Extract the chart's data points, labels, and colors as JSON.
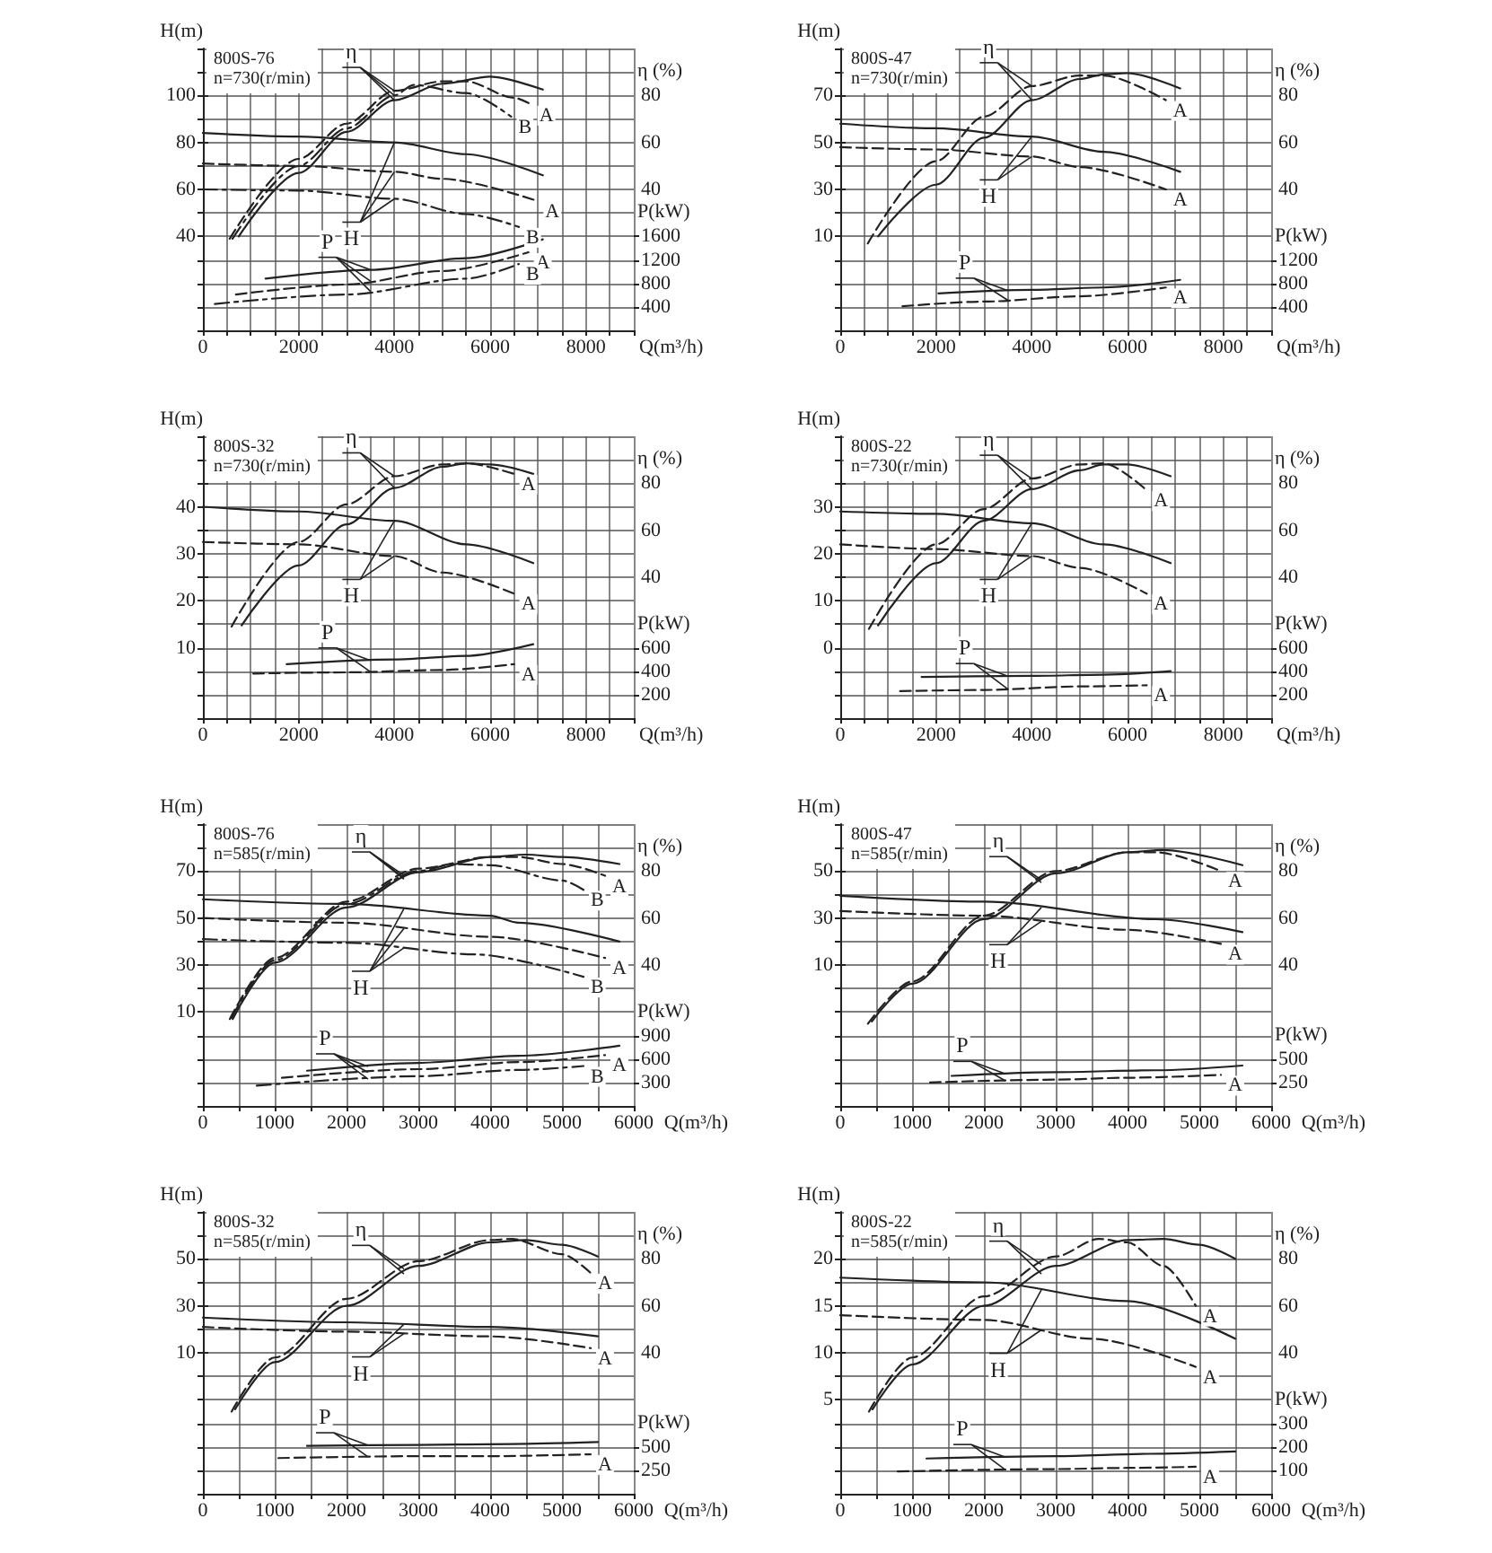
{
  "chart_data": [
    {
      "type": "line",
      "title": "800S-76",
      "subtitle": "n=730(r/min)",
      "xlabel": "Q(m³/h)",
      "ylabel": "H(m)",
      "y2label": "η (%)",
      "y3label": "P(kW)",
      "grid": true,
      "xlim": [
        0,
        9000
      ],
      "xticks": [
        0,
        {
          "value": 500,
          "label": null
        },
        {
          "value": 1000,
          "label": null
        },
        {
          "value": 1500,
          "label": null
        },
        2000,
        {
          "value": 2500,
          "label": null
        },
        {
          "value": 3000,
          "label": null
        },
        {
          "value": 3500,
          "label": null
        },
        4000,
        {
          "value": 4500,
          "label": null
        },
        {
          "value": 5000,
          "label": null
        },
        {
          "value": 5500,
          "label": null
        },
        6000,
        {
          "value": 6500,
          "label": null
        },
        {
          "value": 7000,
          "label": null
        },
        {
          "value": 7500,
          "label": null
        },
        8000,
        {
          "value": 8500,
          "label": null
        },
        {
          "value": 9000,
          "label": null
        }
      ],
      "ylim": [
        0,
        120
      ],
      "yticks": [
        {
          "value": 0,
          "label": null
        },
        {
          "value": 10,
          "label": null
        },
        {
          "value": 20,
          "label": null
        },
        {
          "value": 30,
          "label": null
        },
        40,
        {
          "value": 50,
          "label": null
        },
        60,
        {
          "value": 70,
          "label": null
        },
        80,
        {
          "value": 90,
          "label": null
        },
        100,
        {
          "value": 110,
          "label": null
        },
        {
          "value": 120,
          "label": null
        }
      ],
      "y2lim": [
        -20,
        100
      ],
      "y2ticks": [
        40,
        60,
        80
      ],
      "y3lim": [
        0,
        4800
      ],
      "y3ticks": [
        400,
        800,
        1200,
        1600
      ],
      "annotations": [
        {
          "text": "η",
          "x": 4000,
          "y": 98
        },
        {
          "text": "H",
          "x": 4000,
          "y": 80
        },
        {
          "text": "P",
          "x": 3500,
          "y": 25.8
        }
      ],
      "series": [
        {
          "axis": "y2",
          "color": "#222222",
          "line_style": "solid",
          "x": [
            750,
            2000,
            3000,
            4000,
            5000,
            6000,
            7100
          ],
          "values": [
            20,
            47,
            64.5,
            78,
            85,
            88,
            82.5
          ]
        },
        {
          "name": "A",
          "axis": "y2",
          "color": "#222222",
          "line_style": "dashed",
          "x": [
            560,
            2000,
            3000,
            4000,
            5000,
            5500,
            6500,
            6875
          ],
          "values": [
            19,
            53,
            68,
            82,
            86,
            86,
            79,
            76
          ]
        },
        {
          "name": "B",
          "axis": "y2",
          "color": "#222222",
          "line_style": "dashdot",
          "x": [
            620,
            2000,
            3000,
            4000,
            4400,
            5500,
            6440
          ],
          "values": [
            19,
            50,
            66,
            80,
            84.5,
            81,
            71
          ]
        },
        {
          "color": "#222222",
          "line_style": "solid",
          "x": [
            0,
            2000,
            4000,
            5500,
            7100
          ],
          "values": [
            84,
            82.5,
            80,
            75,
            66
          ]
        },
        {
          "name": "A",
          "color": "#222222",
          "line_style": "dashed",
          "x": [
            0,
            2000,
            4000,
            5000,
            7000
          ],
          "values": [
            71,
            70,
            67.5,
            64.5,
            55
          ]
        },
        {
          "name": "B",
          "color": "#222222",
          "line_style": "dashdot",
          "x": [
            0,
            2000,
            4000,
            5500,
            6600
          ],
          "values": [
            60,
            59.5,
            56,
            49.5,
            44
          ]
        },
        {
          "axis": "y3",
          "color": "#222222",
          "line_style": "solid",
          "x": [
            1310,
            3500,
            5500,
            7100
          ],
          "values": [
            880,
            1030,
            1230,
            1550
          ]
        },
        {
          "name": "A",
          "axis": "y3",
          "color": "#222222",
          "line_style": "dashed",
          "x": [
            690,
            3000,
            5000,
            6800
          ],
          "values": [
            610,
            780,
            1010,
            1330
          ]
        },
        {
          "name": "B",
          "axis": "y3",
          "color": "#222222",
          "line_style": "dashdot",
          "x": [
            250,
            3000,
            5500,
            6600
          ],
          "values": [
            450,
            610,
            880,
            1130
          ]
        }
      ]
    },
    {
      "type": "line",
      "title": "800S-47",
      "subtitle": "n=730(r/min)",
      "xlabel": "Q(m³/h)",
      "ylabel": "H(m)",
      "y2label": "η (%)",
      "y3label": "P(kW)",
      "grid": true,
      "xlim": [
        0,
        9000
      ],
      "xticks": [
        0,
        {
          "value": 500,
          "label": null
        },
        {
          "value": 1000,
          "label": null
        },
        {
          "value": 1500,
          "label": null
        },
        2000,
        {
          "value": 2500,
          "label": null
        },
        {
          "value": 3000,
          "label": null
        },
        {
          "value": 3500,
          "label": null
        },
        4000,
        {
          "value": 4500,
          "label": null
        },
        {
          "value": 5000,
          "label": null
        },
        {
          "value": 5500,
          "label": null
        },
        6000,
        {
          "value": 6500,
          "label": null
        },
        {
          "value": 7000,
          "label": null
        },
        {
          "value": 7500,
          "label": null
        },
        8000,
        {
          "value": 8500,
          "label": null
        },
        {
          "value": 9000,
          "label": null
        }
      ],
      "ylim": [
        -30,
        90
      ],
      "yticks": [
        {
          "value": -30,
          "label": null
        },
        {
          "value": -20,
          "label": null
        },
        {
          "value": -10,
          "label": null
        },
        {
          "value": 0,
          "label": null
        },
        10,
        {
          "value": 20,
          "label": null
        },
        30,
        {
          "value": 40,
          "label": null
        },
        50,
        {
          "value": 60,
          "label": null
        },
        70,
        {
          "value": 80,
          "label": null
        },
        {
          "value": 90,
          "label": null
        }
      ],
      "y2lim": [
        -20,
        100
      ],
      "y2ticks": [
        40,
        60,
        80
      ],
      "y3lim": [
        0,
        4800
      ],
      "y3ticks": [
        400,
        800,
        1200
      ],
      "annotations": [
        {
          "text": "η",
          "x": 4000,
          "y": 68
        },
        {
          "text": "H",
          "x": 4000,
          "y": 52.5
        },
        {
          "text": "P",
          "x": 3500,
          "y": -13.3
        }
      ],
      "series": [
        {
          "axis": "y2",
          "color": "#222222",
          "line_style": "solid",
          "x": [
            790,
            2000,
            3000,
            4000,
            5000,
            5500,
            6000,
            7100
          ],
          "values": [
            20,
            42,
            62,
            78,
            87,
            89,
            89.5,
            83
          ]
        },
        {
          "name": "A",
          "axis": "y2",
          "color": "#222222",
          "line_style": "dashed",
          "x": [
            575,
            2000,
            3000,
            4000,
            5000,
            5500,
            6800
          ],
          "values": [
            17,
            52,
            71,
            84,
            88.5,
            88.5,
            78
          ]
        },
        {
          "color": "#222222",
          "line_style": "solid",
          "x": [
            0,
            2000,
            4000,
            5500,
            7100
          ],
          "values": [
            58,
            56,
            52.5,
            46,
            37.5
          ]
        },
        {
          "name": "A",
          "color": "#222222",
          "line_style": "dashed",
          "x": [
            0,
            2000,
            4000,
            5000,
            6800
          ],
          "values": [
            48,
            47,
            44,
            39.5,
            30
          ]
        },
        {
          "axis": "y3",
          "color": "#222222",
          "line_style": "solid",
          "x": [
            2050,
            4000,
            5500,
            7100
          ],
          "values": [
            630,
            690,
            730,
            860
          ]
        },
        {
          "name": "A",
          "axis": "y3",
          "color": "#222222",
          "line_style": "dashed",
          "x": [
            1300,
            3000,
            5000,
            6800
          ],
          "values": [
            410,
            490,
            580,
            730
          ]
        }
      ]
    },
    {
      "type": "line",
      "title": "800S-32",
      "subtitle": "n=730(r/min)",
      "xlabel": "Q(m³/h)",
      "ylabel": "H(m)",
      "y2label": "η (%)",
      "y3label": "P(kW)",
      "grid": true,
      "xlim": [
        0,
        9000
      ],
      "xticks": [
        0,
        {
          "value": 500,
          "label": null
        },
        {
          "value": 1000,
          "label": null
        },
        {
          "value": 1500,
          "label": null
        },
        2000,
        {
          "value": 2500,
          "label": null
        },
        {
          "value": 3000,
          "label": null
        },
        {
          "value": 3500,
          "label": null
        },
        4000,
        {
          "value": 4500,
          "label": null
        },
        {
          "value": 5000,
          "label": null
        },
        {
          "value": 5500,
          "label": null
        },
        6000,
        {
          "value": 6500,
          "label": null
        },
        {
          "value": 7000,
          "label": null
        },
        {
          "value": 7500,
          "label": null
        },
        8000,
        {
          "value": 8500,
          "label": null
        },
        {
          "value": 9000,
          "label": null
        }
      ],
      "ylim": [
        -5,
        55
      ],
      "yticks": [
        {
          "value": -5,
          "label": null
        },
        {
          "value": 0,
          "label": null
        },
        {
          "value": 5,
          "label": null
        },
        10,
        {
          "value": 15,
          "label": null
        },
        20,
        {
          "value": 25,
          "label": null
        },
        30,
        {
          "value": 35,
          "label": null
        },
        40,
        {
          "value": 45,
          "label": null
        },
        {
          "value": 50,
          "label": null
        },
        {
          "value": 55,
          "label": null
        }
      ],
      "y2lim": [
        -20,
        100
      ],
      "y2ticks": [
        40,
        60,
        80
      ],
      "y3lim": [
        0,
        2400
      ],
      "y3ticks": [
        200,
        400,
        600
      ],
      "annotations": [
        {
          "text": "η",
          "x": 4000,
          "y": 44
        },
        {
          "text": "H",
          "x": 4000,
          "y": 37
        },
        {
          "text": "P",
          "x": 3500,
          "y": 7.3
        }
      ],
      "series": [
        {
          "axis": "y2",
          "color": "#222222",
          "line_style": "solid",
          "x": [
            810,
            2000,
            3000,
            4000,
            5000,
            5500,
            6000,
            6900
          ],
          "values": [
            19.5,
            45,
            62.5,
            78,
            87,
            88.5,
            88,
            84
          ]
        },
        {
          "name": "A",
          "axis": "y2",
          "color": "#222222",
          "line_style": "dashed",
          "x": [
            600,
            2000,
            3000,
            4000,
            5000,
            5500,
            6500
          ],
          "values": [
            19,
            55,
            71,
            83,
            88,
            88.5,
            84
          ]
        },
        {
          "color": "#222222",
          "line_style": "solid",
          "x": [
            0,
            2000,
            4000,
            5500,
            6900
          ],
          "values": [
            40,
            39,
            37,
            32,
            28
          ]
        },
        {
          "name": "A",
          "color": "#222222",
          "line_style": "dashed",
          "x": [
            0,
            2000,
            4000,
            5000,
            6500
          ],
          "values": [
            32.5,
            32,
            29.5,
            26,
            21.5
          ]
        },
        {
          "axis": "y3",
          "color": "#222222",
          "line_style": "solid",
          "x": [
            1750,
            4000,
            5500,
            6900
          ],
          "values": [
            460,
            500,
            530,
            630
          ]
        },
        {
          "name": "A",
          "axis": "y3",
          "color": "#222222",
          "line_style": "dashed",
          "x": [
            1050,
            3000,
            5000,
            6500
          ],
          "values": [
            380,
            390,
            410,
            460
          ]
        }
      ]
    },
    {
      "type": "line",
      "title": "800S-22",
      "subtitle": "n=730(r/min)",
      "xlabel": "Q(m³/h)",
      "ylabel": "H(m)",
      "y2label": "η (%)",
      "y3label": "P(kW)",
      "grid": true,
      "xlim": [
        0,
        9000
      ],
      "xticks": [
        0,
        {
          "value": 500,
          "label": null
        },
        {
          "value": 1000,
          "label": null
        },
        {
          "value": 1500,
          "label": null
        },
        2000,
        {
          "value": 2500,
          "label": null
        },
        {
          "value": 3000,
          "label": null
        },
        {
          "value": 3500,
          "label": null
        },
        4000,
        {
          "value": 4500,
          "label": null
        },
        {
          "value": 5000,
          "label": null
        },
        {
          "value": 5500,
          "label": null
        },
        6000,
        {
          "value": 6500,
          "label": null
        },
        {
          "value": 7000,
          "label": null
        },
        {
          "value": 7500,
          "label": null
        },
        8000,
        {
          "value": 8500,
          "label": null
        },
        {
          "value": 9000,
          "label": null
        }
      ],
      "ylim": [
        -15,
        45
      ],
      "yticks": [
        {
          "value": -15,
          "label": null
        },
        {
          "value": -10,
          "label": null
        },
        {
          "value": -5,
          "label": null
        },
        0,
        {
          "value": 5,
          "label": null
        },
        10,
        {
          "value": 15,
          "label": null
        },
        20,
        {
          "value": 25,
          "label": null
        },
        30,
        {
          "value": 35,
          "label": null
        },
        {
          "value": 40,
          "label": null
        },
        {
          "value": 45,
          "label": null
        }
      ],
      "y2lim": [
        -20,
        100
      ],
      "y2ticks": [
        40,
        60,
        80
      ],
      "y3lim": [
        0,
        2400
      ],
      "y3ticks": [
        200,
        400,
        600
      ],
      "annotations": [
        {
          "text": "η",
          "x": 4000,
          "y": 33.8
        },
        {
          "text": "H",
          "x": 4000,
          "y": 26.5
        },
        {
          "text": "P",
          "x": 3500,
          "y": -6
        }
      ],
      "series": [
        {
          "axis": "y2",
          "color": "#222222",
          "line_style": "solid",
          "x": [
            790,
            2000,
            3000,
            4000,
            5000,
            5500,
            6000,
            6900
          ],
          "values": [
            19.5,
            46,
            64,
            77.5,
            85.5,
            88,
            88,
            83
          ]
        },
        {
          "name": "A",
          "axis": "y2",
          "color": "#222222",
          "line_style": "dashed",
          "x": [
            600,
            2000,
            3000,
            4000,
            5000,
            5500,
            6400
          ],
          "values": [
            18,
            54,
            69,
            82,
            88,
            88.5,
            77
          ]
        },
        {
          "color": "#222222",
          "line_style": "solid",
          "x": [
            0,
            2000,
            4000,
            5500,
            6900
          ],
          "values": [
            29,
            28.5,
            26.5,
            22,
            18
          ]
        },
        {
          "name": "A",
          "color": "#222222",
          "line_style": "dashed",
          "x": [
            0,
            2000,
            4000,
            5000,
            6400
          ],
          "values": [
            22,
            21,
            19.5,
            17,
            11.5
          ]
        },
        {
          "axis": "y3",
          "color": "#222222",
          "line_style": "solid",
          "x": [
            1700,
            4000,
            5500,
            6900
          ],
          "values": [
            350,
            360,
            370,
            400
          ]
        },
        {
          "name": "A",
          "axis": "y3",
          "color": "#222222",
          "line_style": "dashed",
          "x": [
            1250,
            3000,
            5000,
            6400
          ],
          "values": [
            230,
            240,
            270,
            280
          ]
        }
      ]
    },
    {
      "type": "line",
      "title": "800S-76",
      "subtitle": "n=585(r/min)",
      "xlabel": "Q(m³/h)",
      "ylabel": "H(m)",
      "y2label": "η (%)",
      "y3label": "P(kW)",
      "grid": true,
      "xlim": [
        0,
        6000
      ],
      "xticks": [
        0,
        {
          "value": 500,
          "label": null
        },
        1000,
        {
          "value": 1500,
          "label": null
        },
        2000,
        {
          "value": 2500,
          "label": null
        },
        3000,
        {
          "value": 3500,
          "label": null
        },
        4000,
        {
          "value": 4500,
          "label": null
        },
        5000,
        {
          "value": 5500,
          "label": null
        },
        6000
      ],
      "ylim": [
        -30,
        90
      ],
      "yticks": [
        {
          "value": -30,
          "label": null
        },
        {
          "value": -20,
          "label": null
        },
        {
          "value": -10,
          "label": null
        },
        {
          "value": 0,
          "label": null
        },
        10,
        {
          "value": 20,
          "label": null
        },
        30,
        {
          "value": 40,
          "label": null
        },
        50,
        {
          "value": 60,
          "label": null
        },
        70,
        {
          "value": 80,
          "label": null
        },
        {
          "value": 90,
          "label": null
        }
      ],
      "y2lim": [
        -20,
        100
      ],
      "y2ticks": [
        40,
        60,
        80
      ],
      "y3lim": [
        0,
        3600
      ],
      "y3ticks": [
        300,
        600,
        900
      ],
      "annotations": [
        {
          "text": "η",
          "x": 2800,
          "y": 66.5
        },
        {
          "text": "H",
          "x": 2800,
          "y": 54
        },
        {
          "text": "P",
          "x": 2300,
          "y": -13.3
        }
      ],
      "series": [
        {
          "axis": "y2",
          "color": "#222222",
          "line_style": "solid",
          "x": [
            415,
            1000,
            2000,
            3000,
            4000,
            4500,
            5000,
            5800
          ],
          "values": [
            17,
            41,
            64.5,
            79.5,
            86,
            87,
            86,
            83
          ]
        },
        {
          "name": "A",
          "axis": "y2",
          "color": "#222222",
          "line_style": "dashed",
          "x": [
            375,
            1000,
            2000,
            3000,
            4000,
            4400,
            5000,
            5600
          ],
          "values": [
            17,
            43,
            67,
            81,
            86,
            86,
            83,
            78
          ]
        },
        {
          "name": "B",
          "axis": "y2",
          "color": "#222222",
          "line_style": "dashdot",
          "x": [
            400,
            1000,
            2000,
            3000,
            3500,
            4000,
            5000,
            5300
          ],
          "values": [
            17.5,
            42,
            66,
            80,
            83,
            82.5,
            76,
            72
          ]
        },
        {
          "color": "#222222",
          "line_style": "solid",
          "x": [
            0,
            2000,
            4000,
            4400,
            5800
          ],
          "values": [
            58,
            56,
            51,
            48,
            40
          ]
        },
        {
          "name": "A",
          "color": "#222222",
          "line_style": "dashed",
          "x": [
            0,
            2000,
            4000,
            5600
          ],
          "values": [
            50,
            48,
            42,
            33
          ]
        },
        {
          "name": "B",
          "color": "#222222",
          "line_style": "dashdot",
          "x": [
            0,
            2000,
            3800,
            5300
          ],
          "values": [
            41,
            39.5,
            34.5,
            25
          ]
        },
        {
          "axis": "y3",
          "color": "#222222",
          "line_style": "solid",
          "x": [
            1450,
            3000,
            4400,
            5800
          ],
          "values": [
            450,
            550,
            640,
            770
          ]
        },
        {
          "name": "A",
          "axis": "y3",
          "color": "#222222",
          "line_style": "dashed",
          "x": [
            1100,
            3000,
            4400,
            5600
          ],
          "values": [
            360,
            470,
            560,
            650
          ]
        },
        {
          "name": "B",
          "axis": "y3",
          "color": "#222222",
          "line_style": "dashdot",
          "x": [
            750,
            3000,
            4400,
            5300
          ],
          "values": [
            260,
            380,
            460,
            510
          ]
        }
      ]
    },
    {
      "type": "line",
      "title": "800S-47",
      "subtitle": "n=585(r/min)",
      "xlabel": "Q(m³/h)",
      "ylabel": "H(m)",
      "y2label": "η (%)",
      "y3label": "P(kW)",
      "grid": true,
      "xlim": [
        0,
        6000
      ],
      "xticks": [
        0,
        {
          "value": 500,
          "label": null
        },
        1000,
        {
          "value": 1500,
          "label": null
        },
        2000,
        {
          "value": 2500,
          "label": null
        },
        3000,
        {
          "value": 3500,
          "label": null
        },
        4000,
        {
          "value": 4500,
          "label": null
        },
        5000,
        {
          "value": 5500,
          "label": null
        },
        6000
      ],
      "ylim": [
        -50,
        70
      ],
      "yticks": [
        {
          "value": -50,
          "label": null
        },
        {
          "value": -40,
          "label": null
        },
        {
          "value": -30,
          "label": null
        },
        {
          "value": -20,
          "label": null
        },
        {
          "value": -10,
          "label": null
        },
        {
          "value": 0,
          "label": null
        },
        10,
        {
          "value": 20,
          "label": null
        },
        30,
        {
          "value": 40,
          "label": null
        },
        50,
        {
          "value": 60,
          "label": null
        },
        {
          "value": 70,
          "label": null
        }
      ],
      "y2lim": [
        -20,
        100
      ],
      "y2ticks": [
        40,
        60,
        80
      ],
      "y3lim": [
        0,
        3000
      ],
      "y3ticks": [
        250,
        500
      ],
      "annotations": [
        {
          "text": "η",
          "x": 2800,
          "y": 45
        },
        {
          "text": "H",
          "x": 2800,
          "y": 34.5
        },
        {
          "text": "P",
          "x": 2300,
          "y": -36.4
        }
      ],
      "series": [
        {
          "axis": "y2",
          "color": "#222222",
          "line_style": "solid",
          "x": [
            440,
            1000,
            2000,
            3000,
            4000,
            4500,
            5600
          ],
          "values": [
            16,
            32,
            59.5,
            79,
            88,
            89,
            82.5
          ]
        },
        {
          "name": "A",
          "axis": "y2",
          "color": "#222222",
          "line_style": "dashed",
          "x": [
            385,
            1000,
            2000,
            3000,
            4000,
            4400,
            5300
          ],
          "values": [
            15,
            33,
            61,
            80,
            88,
            88,
            80
          ]
        },
        {
          "color": "#222222",
          "line_style": "solid",
          "x": [
            0,
            2000,
            4400,
            5600
          ],
          "values": [
            39.5,
            37,
            29.5,
            24
          ]
        },
        {
          "name": "A",
          "color": "#222222",
          "line_style": "dashed",
          "x": [
            0,
            2000,
            4000,
            5300
          ],
          "values": [
            33,
            31,
            25,
            19
          ]
        },
        {
          "axis": "y3",
          "color": "#222222",
          "line_style": "solid",
          "x": [
            1550,
            3000,
            4400,
            5600
          ],
          "values": [
            320,
            360,
            380,
            430
          ]
        },
        {
          "name": "A",
          "axis": "y3",
          "color": "#222222",
          "line_style": "dashed",
          "x": [
            1250,
            3000,
            4000,
            5300
          ],
          "values": [
            250,
            280,
            300,
            330
          ]
        }
      ]
    },
    {
      "type": "line",
      "title": "800S-32",
      "subtitle": "n=585(r/min)",
      "xlabel": "Q(m³/h)",
      "ylabel": "H(m)",
      "y2label": "η (%)",
      "y3label": "P(kW)",
      "grid": true,
      "xlim": [
        0,
        6000
      ],
      "xticks": [
        0,
        {
          "value": 500,
          "label": null
        },
        1000,
        {
          "value": 1500,
          "label": null
        },
        2000,
        {
          "value": 2500,
          "label": null
        },
        3000,
        {
          "value": 3500,
          "label": null
        },
        4000,
        {
          "value": 4500,
          "label": null
        },
        5000,
        {
          "value": 5500,
          "label": null
        },
        6000
      ],
      "ylim": [
        -50,
        70
      ],
      "yticks": [
        {
          "value": -50,
          "label": null
        },
        {
          "value": -40,
          "label": null
        },
        {
          "value": -30,
          "label": null
        },
        {
          "value": -20,
          "label": null
        },
        {
          "value": -10,
          "label": null
        },
        {
          "value": 0,
          "label": null
        },
        10,
        {
          "value": 20,
          "label": null
        },
        30,
        {
          "value": 40,
          "label": null
        },
        50,
        {
          "value": 60,
          "label": null
        },
        {
          "value": 70,
          "label": null
        }
      ],
      "y2lim": [
        -20,
        100
      ],
      "y2ticks": [
        40,
        60,
        80
      ],
      "y3lim": [
        0,
        3000
      ],
      "y3ticks": [
        250,
        500
      ],
      "annotations": [
        {
          "text": "η",
          "x": 2800,
          "y": 43.5
        },
        {
          "text": "H",
          "x": 2800,
          "y": 22
        },
        {
          "text": "P",
          "x": 2300,
          "y": -29.4
        }
      ],
      "series": [
        {
          "axis": "y2",
          "color": "#222222",
          "line_style": "solid",
          "x": [
            450,
            1000,
            2000,
            3000,
            4000,
            4500,
            5000,
            5500
          ],
          "values": [
            16,
            36,
            60,
            77,
            87,
            88,
            86,
            81
          ]
        },
        {
          "name": "A",
          "axis": "y2",
          "color": "#222222",
          "line_style": "dashed",
          "x": [
            400,
            1000,
            2000,
            3000,
            4000,
            4300,
            5000,
            5400
          ],
          "values": [
            15,
            38,
            63,
            79,
            88,
            88.5,
            82,
            74
          ]
        },
        {
          "color": "#222222",
          "line_style": "solid",
          "x": [
            0,
            2000,
            4000,
            5500
          ],
          "values": [
            25,
            23,
            21,
            17
          ]
        },
        {
          "name": "A",
          "color": "#222222",
          "line_style": "dashed",
          "x": [
            0,
            2000,
            4000,
            5400
          ],
          "values": [
            21,
            19,
            17,
            12
          ]
        },
        {
          "axis": "y3",
          "color": "#222222",
          "line_style": "solid",
          "x": [
            1450,
            3000,
            4300,
            5500
          ],
          "values": [
            510,
            520,
            530,
            550
          ]
        },
        {
          "name": "A",
          "axis": "y3",
          "color": "#222222",
          "line_style": "dashed",
          "x": [
            1050,
            3000,
            4000,
            5400
          ],
          "values": [
            380,
            400,
            400,
            420
          ]
        }
      ]
    },
    {
      "type": "line",
      "title": "800S-22",
      "subtitle": "n=585(r/min)",
      "xlabel": "Q(m³/h)",
      "ylabel": "H(m)",
      "y2label": "η (%)",
      "y3label": "P(kW)",
      "grid": true,
      "xlim": [
        0,
        6000
      ],
      "xticks": [
        0,
        {
          "value": 500,
          "label": null
        },
        1000,
        {
          "value": 1500,
          "label": null
        },
        2000,
        {
          "value": 2500,
          "label": null
        },
        3000,
        {
          "value": 3500,
          "label": null
        },
        4000,
        {
          "value": 4500,
          "label": null
        },
        5000,
        {
          "value": 5500,
          "label": null
        },
        6000
      ],
      "ylim": [
        -5,
        25
      ],
      "yticks": [
        {
          "value": -5,
          "label": null
        },
        {
          "value": -2.5,
          "label": null
        },
        {
          "value": 0,
          "label": null
        },
        {
          "value": 2.5,
          "label": null
        },
        5,
        {
          "value": 7.5,
          "label": null
        },
        10,
        {
          "value": 12.5,
          "label": null
        },
        15,
        {
          "value": 17.5,
          "label": null
        },
        20,
        {
          "value": 22.5,
          "label": null
        },
        {
          "value": 25,
          "label": null
        }
      ],
      "y2lim": [
        -20,
        100
      ],
      "y2ticks": [
        40,
        60,
        80
      ],
      "y3lim": [
        0,
        1200
      ],
      "y3ticks": [
        100,
        200,
        300
      ],
      "annotations": [
        {
          "text": "η",
          "x": 2800,
          "y": 18.4
        },
        {
          "text": "H",
          "x": 2800,
          "y": 16.5
        },
        {
          "text": "P",
          "x": 2300,
          "y": -1.1
        }
      ],
      "series": [
        {
          "axis": "y2",
          "color": "#222222",
          "line_style": "solid",
          "x": [
            450,
            1000,
            2000,
            3000,
            4000,
            4500,
            5000,
            5500
          ],
          "values": [
            16,
            35,
            60,
            77,
            88,
            88.5,
            86,
            80
          ]
        },
        {
          "name": "A",
          "axis": "y2",
          "color": "#222222",
          "line_style": "dashed",
          "x": [
            400,
            1000,
            2000,
            3000,
            3600,
            4000,
            4500,
            4950
          ],
          "values": [
            15,
            38,
            64,
            81,
            88.5,
            87,
            77,
            60
          ]
        },
        {
          "color": "#222222",
          "line_style": "solid",
          "x": [
            0,
            2000,
            4000,
            5500
          ],
          "values": [
            18,
            17.5,
            15.5,
            11.5
          ]
        },
        {
          "name": "A",
          "color": "#222222",
          "line_style": "dashed",
          "x": [
            0,
            2000,
            3500,
            4950
          ],
          "values": [
            14,
            13.5,
            11.5,
            8.5
          ]
        },
        {
          "axis": "y3",
          "color": "#222222",
          "line_style": "solid",
          "x": [
            1200,
            3000,
            4300,
            5500
          ],
          "values": [
            150,
            160,
            170,
            180
          ]
        },
        {
          "name": "A",
          "axis": "y3",
          "color": "#222222",
          "line_style": "dashed",
          "x": [
            800,
            3000,
            4000,
            4950
          ],
          "values": [
            95,
            105,
            110,
            115
          ]
        }
      ]
    }
  ]
}
